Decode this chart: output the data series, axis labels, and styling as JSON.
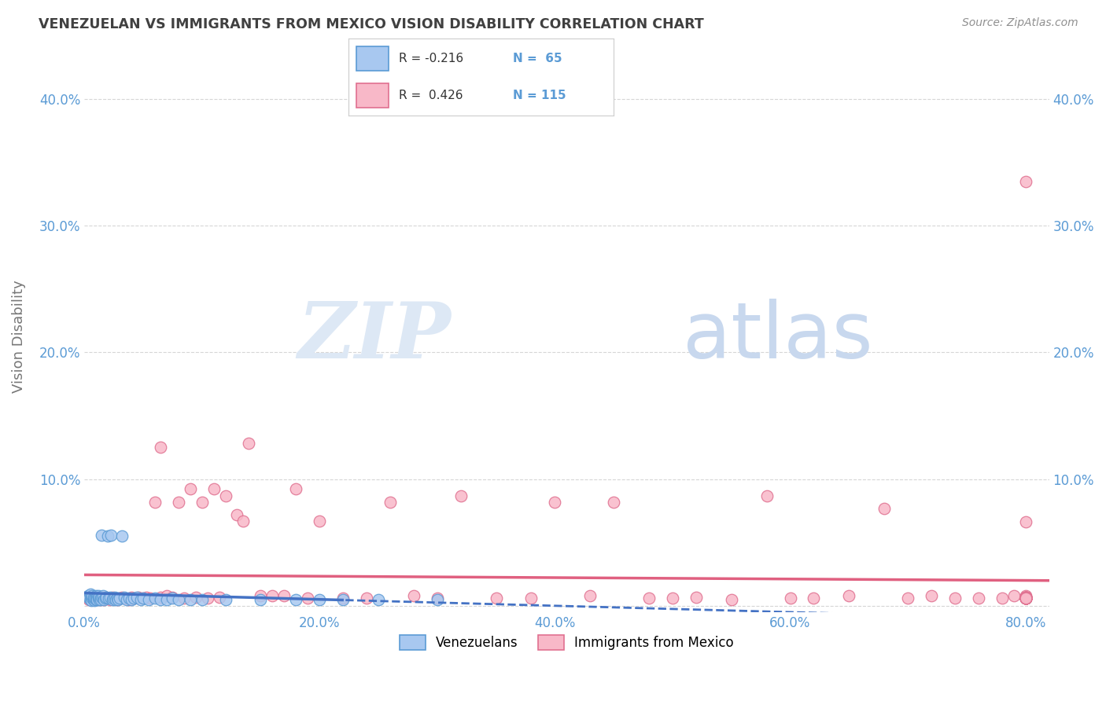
{
  "title": "VENEZUELAN VS IMMIGRANTS FROM MEXICO VISION DISABILITY CORRELATION CHART",
  "source": "Source: ZipAtlas.com",
  "ylabel": "Vision Disability",
  "xlim": [
    0.0,
    0.82
  ],
  "ylim": [
    -0.005,
    0.43
  ],
  "color_venezuelan_fill": "#A8C8F0",
  "color_venezuelan_edge": "#5B9BD5",
  "color_mexico_fill": "#F8B8C8",
  "color_mexico_edge": "#E07090",
  "color_line_venezuelan": "#4472C4",
  "color_line_mexico": "#E06080",
  "color_axis_text": "#5B9BD5",
  "color_title": "#404040",
  "color_source": "#909090",
  "color_watermark": "#DDE8F5",
  "watermark_zip": "ZIP",
  "watermark_atlas": "atlas",
  "background_color": "#FFFFFF",
  "grid_color": "#CCCCCC",
  "venezuelan_x": [
    0.003,
    0.004,
    0.005,
    0.005,
    0.006,
    0.006,
    0.007,
    0.007,
    0.008,
    0.008,
    0.009,
    0.009,
    0.01,
    0.01,
    0.01,
    0.011,
    0.011,
    0.012,
    0.012,
    0.013,
    0.013,
    0.014,
    0.014,
    0.015,
    0.015,
    0.016,
    0.016,
    0.017,
    0.018,
    0.019,
    0.02,
    0.021,
    0.022,
    0.023,
    0.024,
    0.025,
    0.026,
    0.027,
    0.028,
    0.029,
    0.03,
    0.032,
    0.034,
    0.036,
    0.038,
    0.04,
    0.042,
    0.045,
    0.048,
    0.05,
    0.055,
    0.06,
    0.065,
    0.07,
    0.075,
    0.08,
    0.09,
    0.1,
    0.12,
    0.15,
    0.18,
    0.2,
    0.22,
    0.25,
    0.3
  ],
  "venezuelan_y": [
    0.008,
    0.006,
    0.005,
    0.009,
    0.007,
    0.004,
    0.006,
    0.008,
    0.005,
    0.007,
    0.004,
    0.006,
    0.005,
    0.008,
    0.006,
    0.007,
    0.005,
    0.006,
    0.008,
    0.005,
    0.007,
    0.006,
    0.005,
    0.056,
    0.007,
    0.006,
    0.008,
    0.005,
    0.006,
    0.007,
    0.055,
    0.006,
    0.007,
    0.056,
    0.005,
    0.006,
    0.007,
    0.005,
    0.006,
    0.005,
    0.006,
    0.055,
    0.007,
    0.005,
    0.006,
    0.005,
    0.006,
    0.007,
    0.005,
    0.006,
    0.005,
    0.006,
    0.005,
    0.005,
    0.006,
    0.005,
    0.005,
    0.005,
    0.005,
    0.005,
    0.005,
    0.005,
    0.005,
    0.005,
    0.005
  ],
  "mexico_x": [
    0.003,
    0.004,
    0.005,
    0.006,
    0.007,
    0.008,
    0.009,
    0.01,
    0.011,
    0.012,
    0.013,
    0.014,
    0.015,
    0.016,
    0.017,
    0.018,
    0.019,
    0.02,
    0.022,
    0.024,
    0.026,
    0.028,
    0.03,
    0.032,
    0.035,
    0.038,
    0.04,
    0.043,
    0.046,
    0.05,
    0.053,
    0.056,
    0.06,
    0.065,
    0.065,
    0.07,
    0.075,
    0.08,
    0.085,
    0.09,
    0.095,
    0.1,
    0.105,
    0.11,
    0.115,
    0.12,
    0.13,
    0.135,
    0.14,
    0.15,
    0.16,
    0.17,
    0.18,
    0.19,
    0.2,
    0.22,
    0.24,
    0.26,
    0.28,
    0.3,
    0.32,
    0.35,
    0.38,
    0.4,
    0.43,
    0.45,
    0.48,
    0.5,
    0.52,
    0.55,
    0.58,
    0.6,
    0.62,
    0.65,
    0.68,
    0.7,
    0.72,
    0.74,
    0.76,
    0.78,
    0.79,
    0.8,
    0.8,
    0.8,
    0.8,
    0.8,
    0.8,
    0.8,
    0.8,
    0.8,
    0.8,
    0.8,
    0.8,
    0.8,
    0.8,
    0.8,
    0.8,
    0.8,
    0.8,
    0.8,
    0.8,
    0.8,
    0.8,
    0.8,
    0.8,
    0.8,
    0.8,
    0.8,
    0.8,
    0.8,
    0.8,
    0.8,
    0.8,
    0.8,
    0.8
  ],
  "mexico_y": [
    0.006,
    0.005,
    0.007,
    0.005,
    0.006,
    0.005,
    0.007,
    0.006,
    0.005,
    0.007,
    0.006,
    0.005,
    0.006,
    0.007,
    0.005,
    0.006,
    0.007,
    0.006,
    0.005,
    0.007,
    0.006,
    0.005,
    0.006,
    0.007,
    0.006,
    0.005,
    0.007,
    0.006,
    0.007,
    0.006,
    0.007,
    0.006,
    0.082,
    0.125,
    0.007,
    0.008,
    0.007,
    0.082,
    0.006,
    0.092,
    0.007,
    0.082,
    0.006,
    0.092,
    0.007,
    0.087,
    0.072,
    0.067,
    0.128,
    0.008,
    0.008,
    0.008,
    0.092,
    0.006,
    0.067,
    0.006,
    0.006,
    0.082,
    0.008,
    0.006,
    0.087,
    0.006,
    0.006,
    0.082,
    0.008,
    0.082,
    0.006,
    0.006,
    0.007,
    0.005,
    0.087,
    0.006,
    0.006,
    0.008,
    0.077,
    0.006,
    0.008,
    0.006,
    0.006,
    0.006,
    0.008,
    0.335,
    0.006,
    0.008,
    0.007,
    0.006,
    0.006,
    0.006,
    0.007,
    0.006,
    0.006,
    0.066,
    0.006,
    0.006,
    0.007,
    0.006,
    0.007,
    0.006,
    0.006,
    0.006,
    0.006,
    0.006,
    0.007,
    0.006,
    0.006,
    0.006,
    0.006,
    0.007,
    0.006,
    0.006,
    0.006,
    0.007,
    0.006,
    0.006,
    0.006
  ]
}
